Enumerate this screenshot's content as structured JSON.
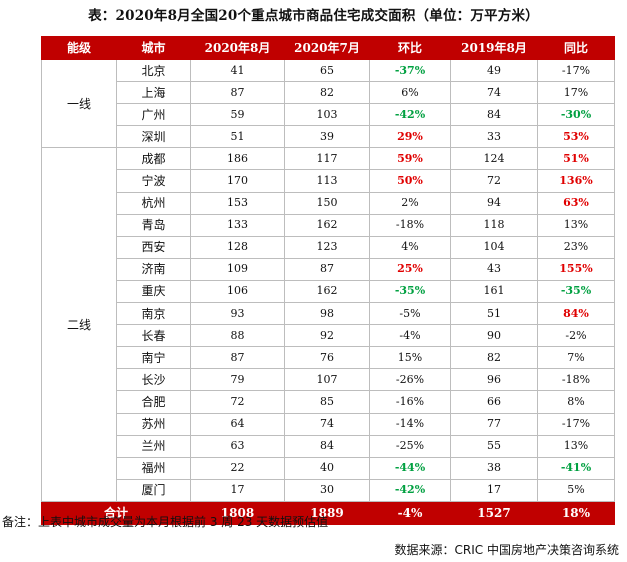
{
  "title": "表：2020年8月全国20个重点城市商品住宅成交面积（单位：万平方米）",
  "headers": [
    "能级",
    "城市",
    "2020年8月",
    "2020年7月",
    "环比",
    "2019年8月",
    "同比"
  ],
  "tiers": [
    {
      "name": "一线",
      "rows": [
        {
          "city": "北京",
          "aug2020": "41",
          "jul2020": "65",
          "mom": "-37%",
          "mom_color": "down",
          "aug2019": "49",
          "yoy": "-17%",
          "yoy_color": ""
        },
        {
          "city": "上海",
          "aug2020": "87",
          "jul2020": "82",
          "mom": "6%",
          "mom_color": "",
          "aug2019": "74",
          "yoy": "17%",
          "yoy_color": ""
        },
        {
          "city": "广州",
          "aug2020": "59",
          "jul2020": "103",
          "mom": "-42%",
          "mom_color": "down",
          "aug2019": "84",
          "yoy": "-30%",
          "yoy_color": "down"
        },
        {
          "city": "深圳",
          "aug2020": "51",
          "jul2020": "39",
          "mom": "29%",
          "mom_color": "up",
          "aug2019": "33",
          "yoy": "53%",
          "yoy_color": "up"
        }
      ]
    },
    {
      "name": "二线",
      "rows": [
        {
          "city": "成都",
          "aug2020": "186",
          "jul2020": "117",
          "mom": "59%",
          "mom_color": "up",
          "aug2019": "124",
          "yoy": "51%",
          "yoy_color": "up"
        },
        {
          "city": "宁波",
          "aug2020": "170",
          "jul2020": "113",
          "mom": "50%",
          "mom_color": "up",
          "aug2019": "72",
          "yoy": "136%",
          "yoy_color": "up"
        },
        {
          "city": "杭州",
          "aug2020": "153",
          "jul2020": "150",
          "mom": "2%",
          "mom_color": "",
          "aug2019": "94",
          "yoy": "63%",
          "yoy_color": "up"
        },
        {
          "city": "青岛",
          "aug2020": "133",
          "jul2020": "162",
          "mom": "-18%",
          "mom_color": "",
          "aug2019": "118",
          "yoy": "13%",
          "yoy_color": ""
        },
        {
          "city": "西安",
          "aug2020": "128",
          "jul2020": "123",
          "mom": "4%",
          "mom_color": "",
          "aug2019": "104",
          "yoy": "23%",
          "yoy_color": ""
        },
        {
          "city": "济南",
          "aug2020": "109",
          "jul2020": "87",
          "mom": "25%",
          "mom_color": "up",
          "aug2019": "43",
          "yoy": "155%",
          "yoy_color": "up"
        },
        {
          "city": "重庆",
          "aug2020": "106",
          "jul2020": "162",
          "mom": "-35%",
          "mom_color": "down",
          "aug2019": "161",
          "yoy": "-35%",
          "yoy_color": "down"
        },
        {
          "city": "南京",
          "aug2020": "93",
          "jul2020": "98",
          "mom": "-5%",
          "mom_color": "",
          "aug2019": "51",
          "yoy": "84%",
          "yoy_color": "up"
        },
        {
          "city": "长春",
          "aug2020": "88",
          "jul2020": "92",
          "mom": "-4%",
          "mom_color": "",
          "aug2019": "90",
          "yoy": "-2%",
          "yoy_color": ""
        },
        {
          "city": "南宁",
          "aug2020": "87",
          "jul2020": "76",
          "mom": "15%",
          "mom_color": "",
          "aug2019": "82",
          "yoy": "7%",
          "yoy_color": ""
        },
        {
          "city": "长沙",
          "aug2020": "79",
          "jul2020": "107",
          "mom": "-26%",
          "mom_color": "",
          "aug2019": "96",
          "yoy": "-18%",
          "yoy_color": ""
        },
        {
          "city": "合肥",
          "aug2020": "72",
          "jul2020": "85",
          "mom": "-16%",
          "mom_color": "",
          "aug2019": "66",
          "yoy": "8%",
          "yoy_color": ""
        },
        {
          "city": "苏州",
          "aug2020": "64",
          "jul2020": "74",
          "mom": "-14%",
          "mom_color": "",
          "aug2019": "77",
          "yoy": "-17%",
          "yoy_color": ""
        },
        {
          "city": "兰州",
          "aug2020": "63",
          "jul2020": "84",
          "mom": "-25%",
          "mom_color": "",
          "aug2019": "55",
          "yoy": "13%",
          "yoy_color": ""
        },
        {
          "city": "福州",
          "aug2020": "22",
          "jul2020": "40",
          "mom": "-44%",
          "mom_color": "down",
          "aug2019": "38",
          "yoy": "-41%",
          "yoy_color": "down"
        },
        {
          "city": "厦门",
          "aug2020": "17",
          "jul2020": "30",
          "mom": "-42%",
          "mom_color": "down",
          "aug2019": "17",
          "yoy": "5%",
          "yoy_color": ""
        }
      ]
    }
  ],
  "total": {
    "label": "合计",
    "aug2020": "1808",
    "jul2020": "1889",
    "mom": "-4%",
    "aug2019": "1527",
    "yoy": "18%"
  },
  "note": "备注：上表中城市成交量为本月根据前 3 周 23 天数据预估值",
  "source": "数据来源：CRIC 中国房地产决策咨询系统",
  "colors": {
    "header_bg": "#c00000",
    "increase": "#e00000",
    "decrease": "#00a040"
  }
}
